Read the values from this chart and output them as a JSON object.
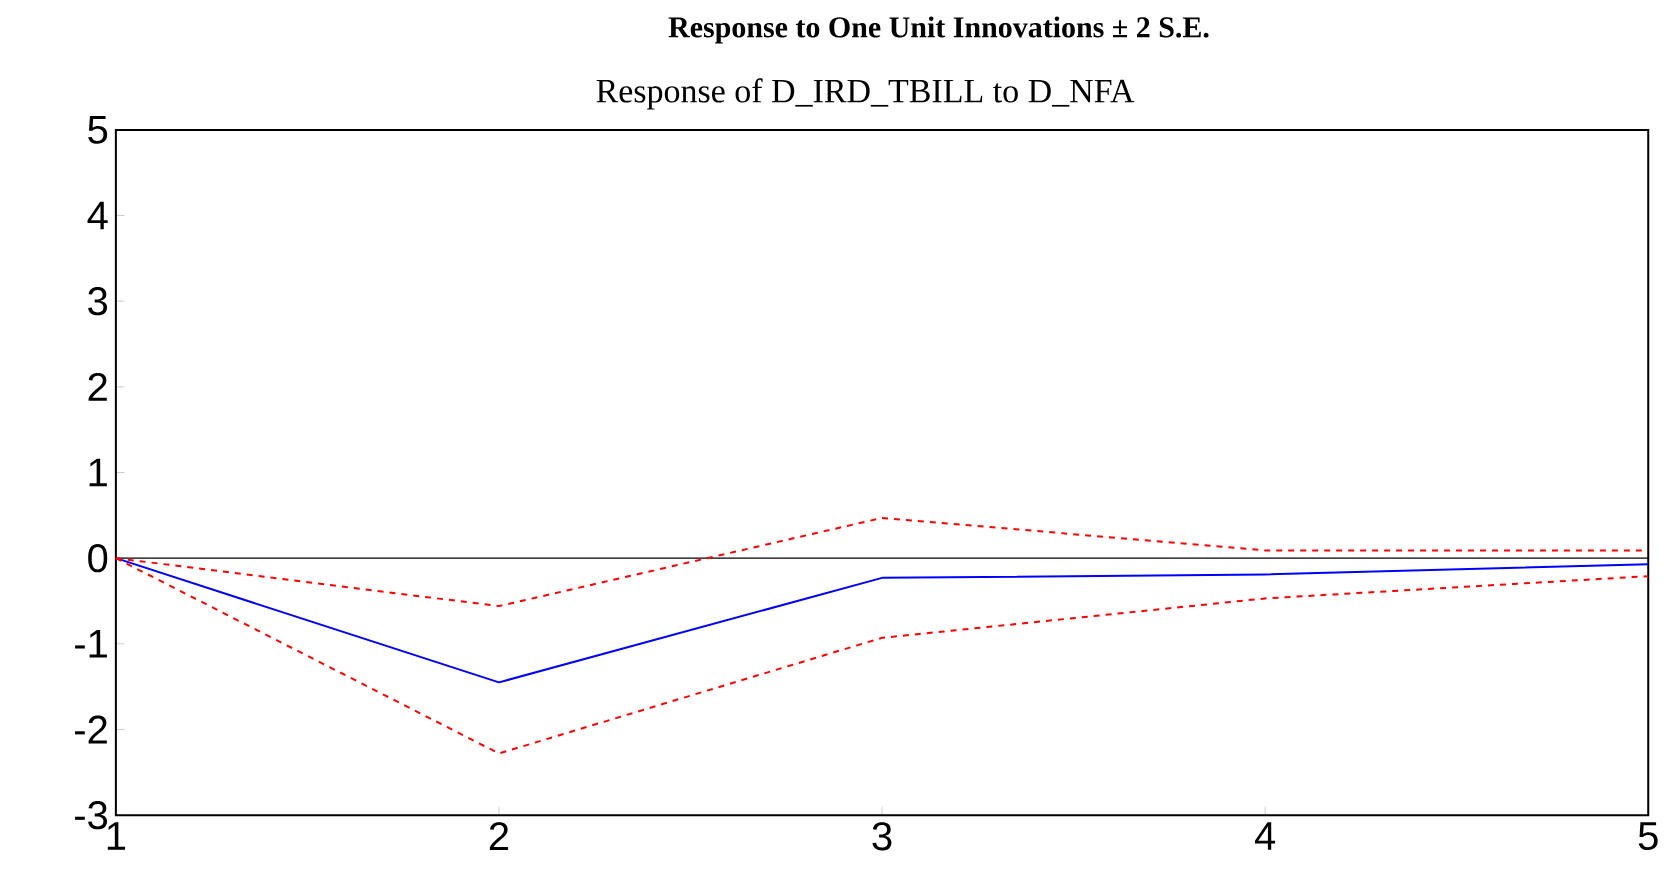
{
  "chart_data": {
    "type": "line",
    "title": "**Response to One Unit Innovations ± 2 S.E.**",
    "subtitle": "Response of D_IRD_TBILL to D_NFA",
    "x": [
      1,
      2,
      3,
      4,
      5
    ],
    "series": [
      {
        "color": "#0000ff",
        "values": [
          0,
          -1.45,
          -0.23,
          -0.19,
          -0.07
        ],
        "line_style": "solid"
      },
      {
        "color": "#ff0000",
        "values": [
          0,
          -0.56,
          0.47,
          0.09,
          0.09
        ],
        "line_style": "dashed"
      },
      {
        "color": "#ff0000",
        "values": [
          0,
          -2.28,
          -0.93,
          -0.47,
          -0.21
        ],
        "line_style": "dashed"
      }
    ],
    "xlim": [
      1,
      5
    ],
    "ylim": [
      -3,
      5
    ],
    "xticks": [
      1,
      2,
      3,
      4,
      5
    ],
    "yticks": [
      -3,
      -2,
      -1,
      0,
      1,
      2,
      3,
      4,
      5
    ],
    "ref_lines": [
      {
        "axis": "y",
        "value": 0,
        "color": "#000000"
      }
    ]
  }
}
